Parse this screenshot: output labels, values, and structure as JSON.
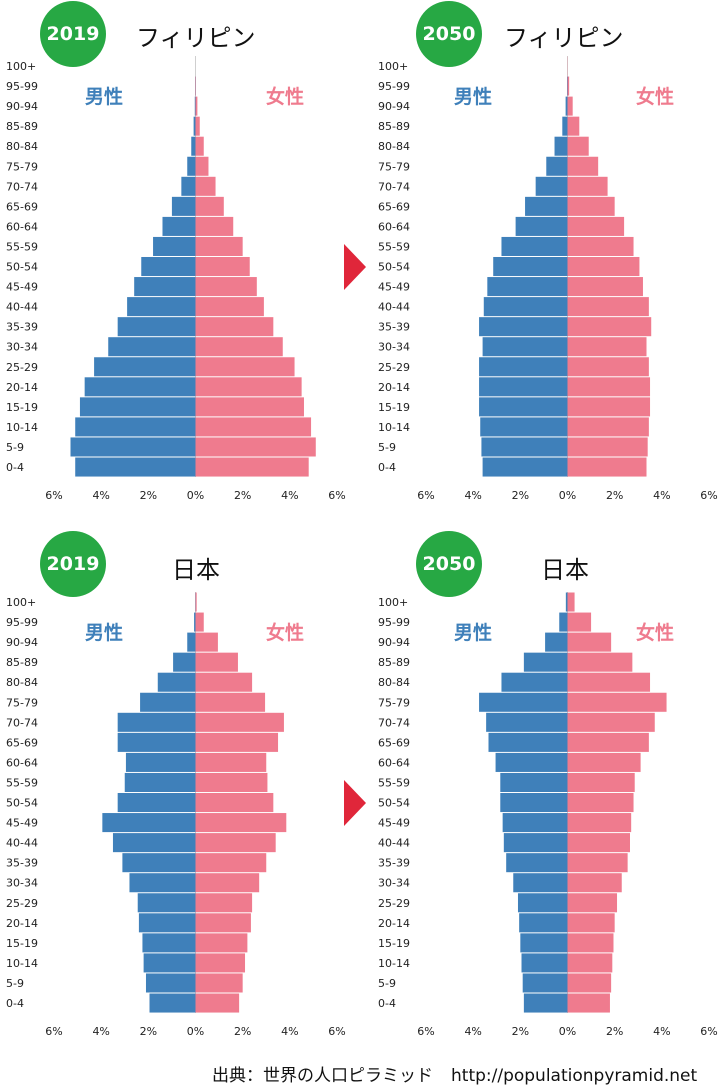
{
  "source": {
    "label": "出典：世界の人口ピラミッド",
    "url": "http://populationpyramid.net"
  },
  "colors": {
    "male": "#3f80ba",
    "female": "#ef7b8e",
    "badge": "#27a844",
    "arrow": "#e0263a"
  },
  "chart_data": [
    {
      "type": "bar",
      "year": "2019",
      "country": "フィリピン",
      "male_label": "男性",
      "female_label": "女性",
      "categories": [
        "0-4",
        "5-9",
        "10-14",
        "15-19",
        "20-14",
        "25-29",
        "30-34",
        "35-39",
        "40-44",
        "45-49",
        "50-54",
        "55-59",
        "60-64",
        "65-69",
        "70-74",
        "75-79",
        "80-84",
        "85-89",
        "90-94",
        "95-99",
        "100+"
      ],
      "series": [
        {
          "name": "男性",
          "values": [
            5.1,
            5.3,
            5.1,
            4.9,
            4.7,
            4.3,
            3.7,
            3.3,
            2.9,
            2.6,
            2.3,
            1.8,
            1.4,
            1.0,
            0.6,
            0.35,
            0.18,
            0.08,
            0.03,
            0.01,
            0.0
          ]
        },
        {
          "name": "女性",
          "values": [
            4.8,
            5.1,
            4.9,
            4.6,
            4.5,
            4.2,
            3.7,
            3.3,
            2.9,
            2.6,
            2.3,
            2.0,
            1.6,
            1.2,
            0.85,
            0.55,
            0.35,
            0.18,
            0.08,
            0.02,
            0.0
          ]
        }
      ],
      "xticks": [
        "6%",
        "4%",
        "2%",
        "0%",
        "2%",
        "4%",
        "6%"
      ],
      "xlim": [
        -6,
        6
      ]
    },
    {
      "type": "bar",
      "year": "2050",
      "country": "フィリピン",
      "male_label": "男性",
      "female_label": "女性",
      "categories": [
        "0-4",
        "5-9",
        "10-14",
        "15-19",
        "20-14",
        "25-29",
        "30-34",
        "35-39",
        "40-44",
        "45-49",
        "50-54",
        "55-59",
        "60-64",
        "65-69",
        "70-74",
        "75-79",
        "80-84",
        "85-89",
        "90-94",
        "95-99",
        "100+"
      ],
      "series": [
        {
          "name": "男性",
          "values": [
            3.6,
            3.65,
            3.7,
            3.75,
            3.75,
            3.75,
            3.6,
            3.75,
            3.55,
            3.4,
            3.15,
            2.8,
            2.2,
            1.8,
            1.35,
            0.9,
            0.55,
            0.22,
            0.08,
            0.02,
            0.0
          ]
        },
        {
          "name": "女性",
          "values": [
            3.35,
            3.4,
            3.45,
            3.5,
            3.5,
            3.45,
            3.35,
            3.55,
            3.45,
            3.2,
            3.05,
            2.8,
            2.4,
            2.0,
            1.7,
            1.3,
            0.9,
            0.5,
            0.22,
            0.07,
            0.01
          ]
        }
      ],
      "xticks": [
        "6%",
        "4%",
        "2%",
        "0%",
        "2%",
        "4%",
        "6%"
      ],
      "xlim": [
        -6,
        6
      ]
    },
    {
      "type": "bar",
      "year": "2019",
      "country": "日本",
      "male_label": "男性",
      "female_label": "女性",
      "categories": [
        "0-4",
        "5-9",
        "10-14",
        "15-19",
        "20-14",
        "25-29",
        "30-34",
        "35-39",
        "40-44",
        "45-49",
        "50-54",
        "55-59",
        "60-64",
        "65-69",
        "70-74",
        "75-79",
        "80-84",
        "85-89",
        "90-94",
        "95-99",
        "100+"
      ],
      "series": [
        {
          "name": "男性",
          "values": [
            1.95,
            2.1,
            2.2,
            2.25,
            2.4,
            2.45,
            2.8,
            3.1,
            3.5,
            3.95,
            3.3,
            3.0,
            2.95,
            3.3,
            3.3,
            2.35,
            1.6,
            0.95,
            0.35,
            0.06,
            0.01
          ]
        },
        {
          "name": "女性",
          "values": [
            1.85,
            2.0,
            2.1,
            2.2,
            2.35,
            2.4,
            2.7,
            3.0,
            3.4,
            3.85,
            3.3,
            3.05,
            3.0,
            3.5,
            3.75,
            2.95,
            2.4,
            1.8,
            0.95,
            0.35,
            0.05
          ]
        }
      ],
      "xticks": [
        "6%",
        "4%",
        "2%",
        "0%",
        "2%",
        "4%",
        "6%"
      ],
      "xlim": [
        -6,
        6
      ]
    },
    {
      "type": "bar",
      "year": "2050",
      "country": "日本",
      "male_label": "男性",
      "female_label": "女性",
      "categories": [
        "0-4",
        "5-9",
        "10-14",
        "15-19",
        "20-14",
        "25-29",
        "30-34",
        "35-39",
        "40-44",
        "45-49",
        "50-54",
        "55-59",
        "60-64",
        "65-69",
        "70-74",
        "75-79",
        "80-84",
        "85-89",
        "90-94",
        "95-99",
        "100+"
      ],
      "series": [
        {
          "name": "男性",
          "values": [
            1.85,
            1.9,
            1.95,
            2.0,
            2.05,
            2.1,
            2.3,
            2.6,
            2.7,
            2.75,
            2.85,
            2.85,
            3.05,
            3.35,
            3.45,
            3.75,
            2.8,
            1.85,
            0.95,
            0.35,
            0.07
          ]
        },
        {
          "name": "女性",
          "values": [
            1.8,
            1.85,
            1.9,
            1.95,
            2.0,
            2.1,
            2.3,
            2.55,
            2.65,
            2.7,
            2.8,
            2.85,
            3.1,
            3.45,
            3.7,
            4.2,
            3.5,
            2.75,
            1.85,
            1.0,
            0.3
          ]
        }
      ],
      "xticks": [
        "6%",
        "4%",
        "2%",
        "0%",
        "2%",
        "4%",
        "6%"
      ],
      "xlim": [
        -6,
        6
      ]
    }
  ]
}
